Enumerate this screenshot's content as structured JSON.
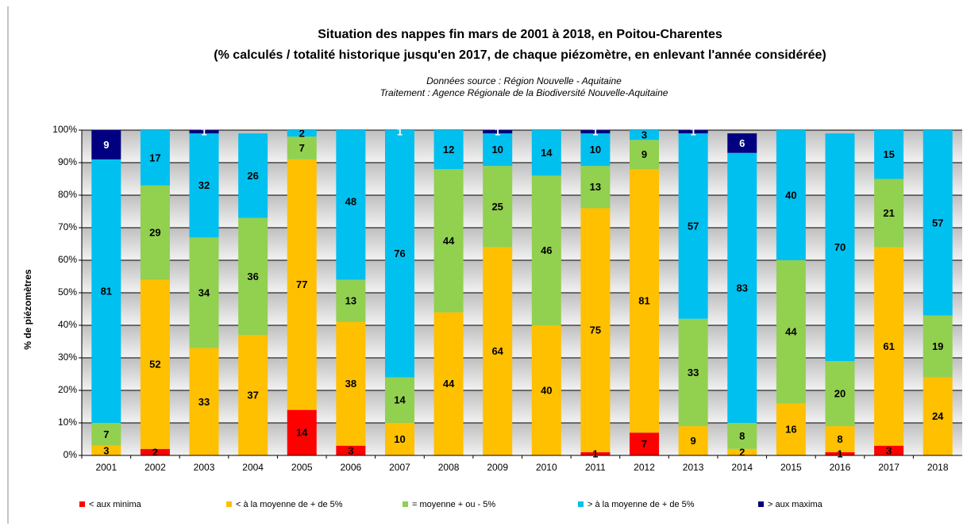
{
  "chart_data": {
    "type": "stacked_bar",
    "title": "Situation des nappes fin mars de 2001 à 2018, en Poitou-Charentes",
    "subtitle": "(% calculés / totalité historique jusqu'en 2017, de chaque piézomètre,  en enlevant l'année considérée)",
    "source": "Données source : Région Nouvelle - Aquitaine",
    "treatment": "Traitement : Agence Régionale de la Biodiversité Nouvelle-Aquitaine",
    "y_label": "% de piézomètres",
    "categories": [
      "2001",
      "2002",
      "2003",
      "2004",
      "2005",
      "2006",
      "2007",
      "2008",
      "2009",
      "2010",
      "2011",
      "2012",
      "2013",
      "2014",
      "2015",
      "2016",
      "2017",
      "2018"
    ],
    "series": [
      {
        "name": "< aux minima",
        "color": "#ff0000",
        "values": [
          0,
          2,
          0,
          0,
          14,
          3,
          0,
          0,
          0,
          0,
          1,
          7,
          0,
          0,
          0,
          1,
          3,
          0
        ]
      },
      {
        "name": "< à la moyenne de + de 5%",
        "color": "#ffc000",
        "values": [
          3,
          52,
          33,
          37,
          77,
          38,
          10,
          44,
          64,
          40,
          75,
          81,
          9,
          2,
          16,
          8,
          61,
          24
        ]
      },
      {
        "name": "= moyenne + ou - 5%",
        "color": "#92d050",
        "values": [
          7,
          29,
          34,
          36,
          7,
          13,
          14,
          44,
          25,
          46,
          13,
          9,
          33,
          8,
          44,
          20,
          21,
          19
        ]
      },
      {
        "name": "> à la moyenne de + de 5%",
        "color": "#00c0f0",
        "values": [
          81,
          17,
          32,
          26,
          2,
          48,
          76,
          12,
          10,
          14,
          10,
          3,
          57,
          83,
          40,
          70,
          15,
          57
        ]
      },
      {
        "name": "> aux maxima",
        "color": "#000080",
        "values": [
          9,
          0,
          1,
          0,
          0,
          0,
          1,
          0,
          1,
          0,
          1,
          0,
          1,
          6,
          0,
          0,
          0,
          0
        ]
      }
    ],
    "ylim": [
      0,
      100
    ],
    "yticks": [
      {
        "value": 0,
        "label": "0%"
      },
      {
        "value": 10,
        "label": "10%"
      },
      {
        "value": 20,
        "label": "20%"
      },
      {
        "value": 30,
        "label": "30%"
      },
      {
        "value": 40,
        "label": "40%"
      },
      {
        "value": 50,
        "label": "50%"
      },
      {
        "value": 60,
        "label": "60%"
      },
      {
        "value": 70,
        "label": "70%"
      },
      {
        "value": 80,
        "label": "80%"
      },
      {
        "value": 90,
        "label": "90%"
      },
      {
        "value": 100,
        "label": "100%"
      }
    ],
    "grid": true,
    "legend": "bottom"
  }
}
